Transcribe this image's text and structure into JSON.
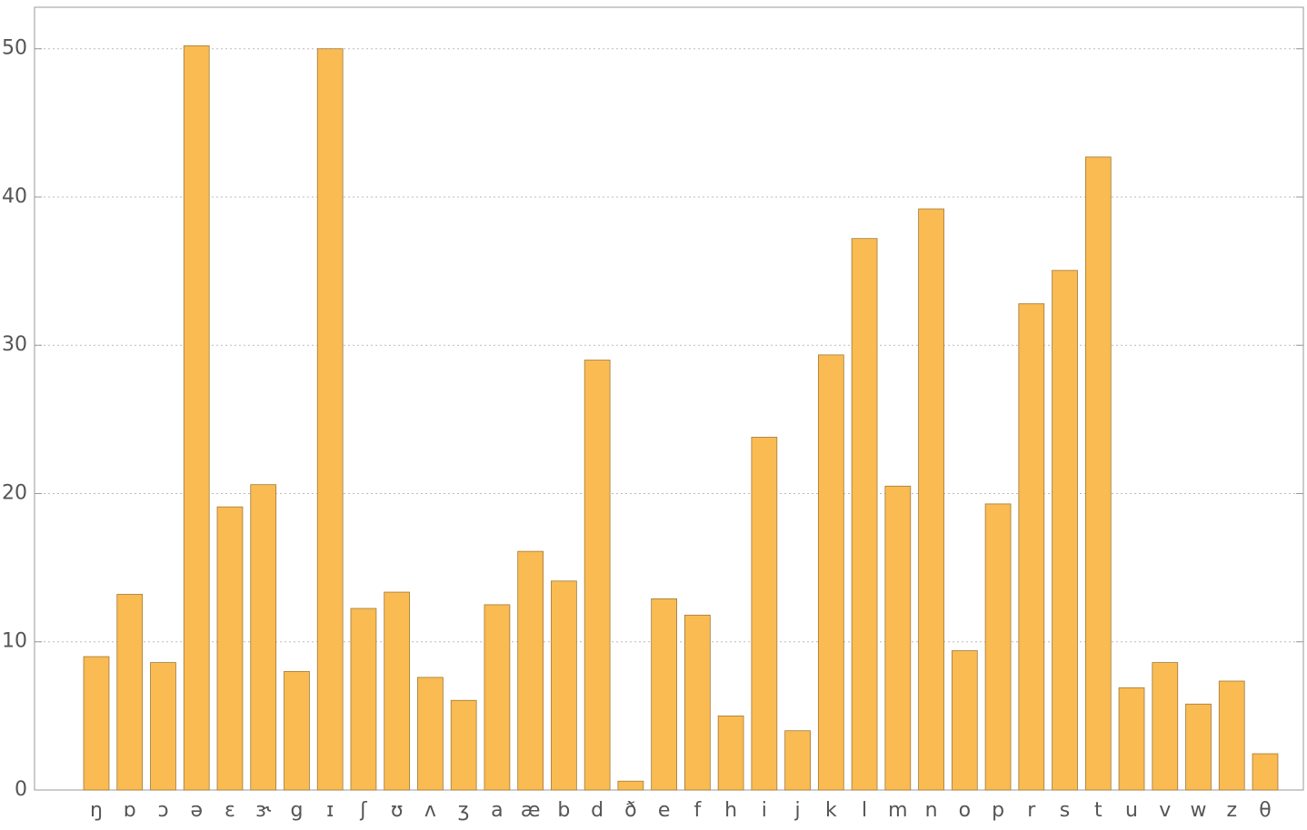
{
  "chart_data": {
    "type": "bar",
    "categories": [
      "ŋ",
      "ɒ",
      "ɔ",
      "ə",
      "ɛ",
      "ɝ",
      "g",
      "ɪ",
      "ʃ",
      "ʊ",
      "ʌ",
      "ʒ",
      "a",
      "æ",
      "b",
      "d",
      "ð",
      "e",
      "f",
      "h",
      "i",
      "j",
      "k",
      "l",
      "m",
      "n",
      "o",
      "p",
      "r",
      "s",
      "t",
      "u",
      "v",
      "w",
      "z",
      "θ"
    ],
    "values": [
      9.0,
      13.2,
      8.6,
      50.2,
      19.1,
      20.6,
      8.0,
      50.0,
      12.25,
      13.35,
      7.6,
      6.05,
      12.5,
      16.1,
      14.1,
      29.0,
      0.6,
      12.9,
      11.8,
      5.0,
      23.8,
      4.0,
      29.35,
      37.2,
      20.5,
      39.2,
      9.4,
      19.3,
      32.8,
      35.05,
      42.7,
      6.9,
      8.6,
      5.8,
      7.35,
      2.45
    ],
    "color": "#f9bb52",
    "ylim": [
      0,
      52.8
    ],
    "yticks": [
      0,
      10,
      20,
      30,
      40,
      50
    ],
    "grid": true
  }
}
